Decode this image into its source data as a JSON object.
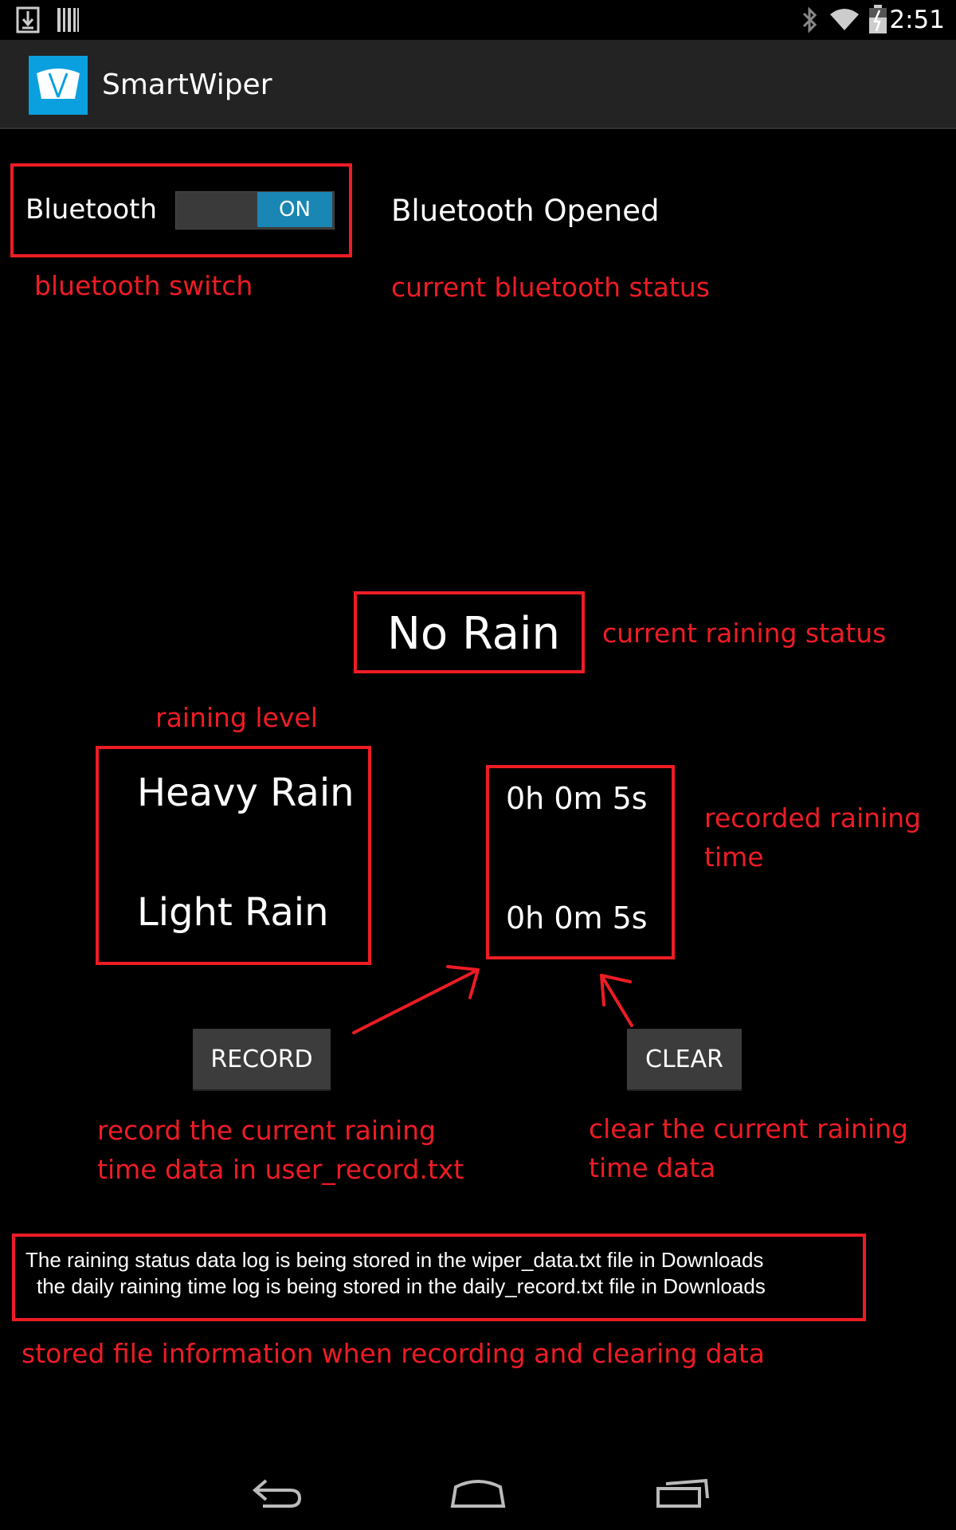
{
  "status_bar": {
    "time": "2:51",
    "icons": [
      "download-icon",
      "barcode-icon",
      "bluetooth-icon",
      "wifi-icon",
      "battery-icon"
    ]
  },
  "action_bar": {
    "title": "SmartWiper",
    "icon": "wiper-app-icon"
  },
  "bluetooth": {
    "label": "Bluetooth",
    "switch_state": "ON",
    "status": "Bluetooth Opened"
  },
  "rain": {
    "status": "No Rain",
    "levels": [
      "Heavy Rain",
      "Light Rain"
    ],
    "times": [
      "0h 0m 5s",
      "0h 0m 5s"
    ]
  },
  "buttons": {
    "record": "RECORD",
    "clear": "CLEAR"
  },
  "info": {
    "line1": "The raining status data log is being stored in the wiper_data.txt file in Downloads",
    "line2": "the daily raining time log is being stored in the daily_record.txt file in Downloads"
  },
  "annotations": {
    "bluetooth_switch": "bluetooth switch",
    "bluetooth_status": "current bluetooth status",
    "raining_status": "current raining status",
    "raining_level": "raining level",
    "recorded_time_1": "recorded raining",
    "recorded_time_2": "time",
    "record_desc_1": "record the current raining",
    "record_desc_2": "time data in user_record.txt",
    "clear_desc_1": "clear the current raining",
    "clear_desc_2": "time data",
    "stored_info": "stored file information when recording and clearing data"
  },
  "colors": {
    "annotation": "#ee1c24",
    "accent": "#1a86b4",
    "action_bar": "#232323"
  }
}
